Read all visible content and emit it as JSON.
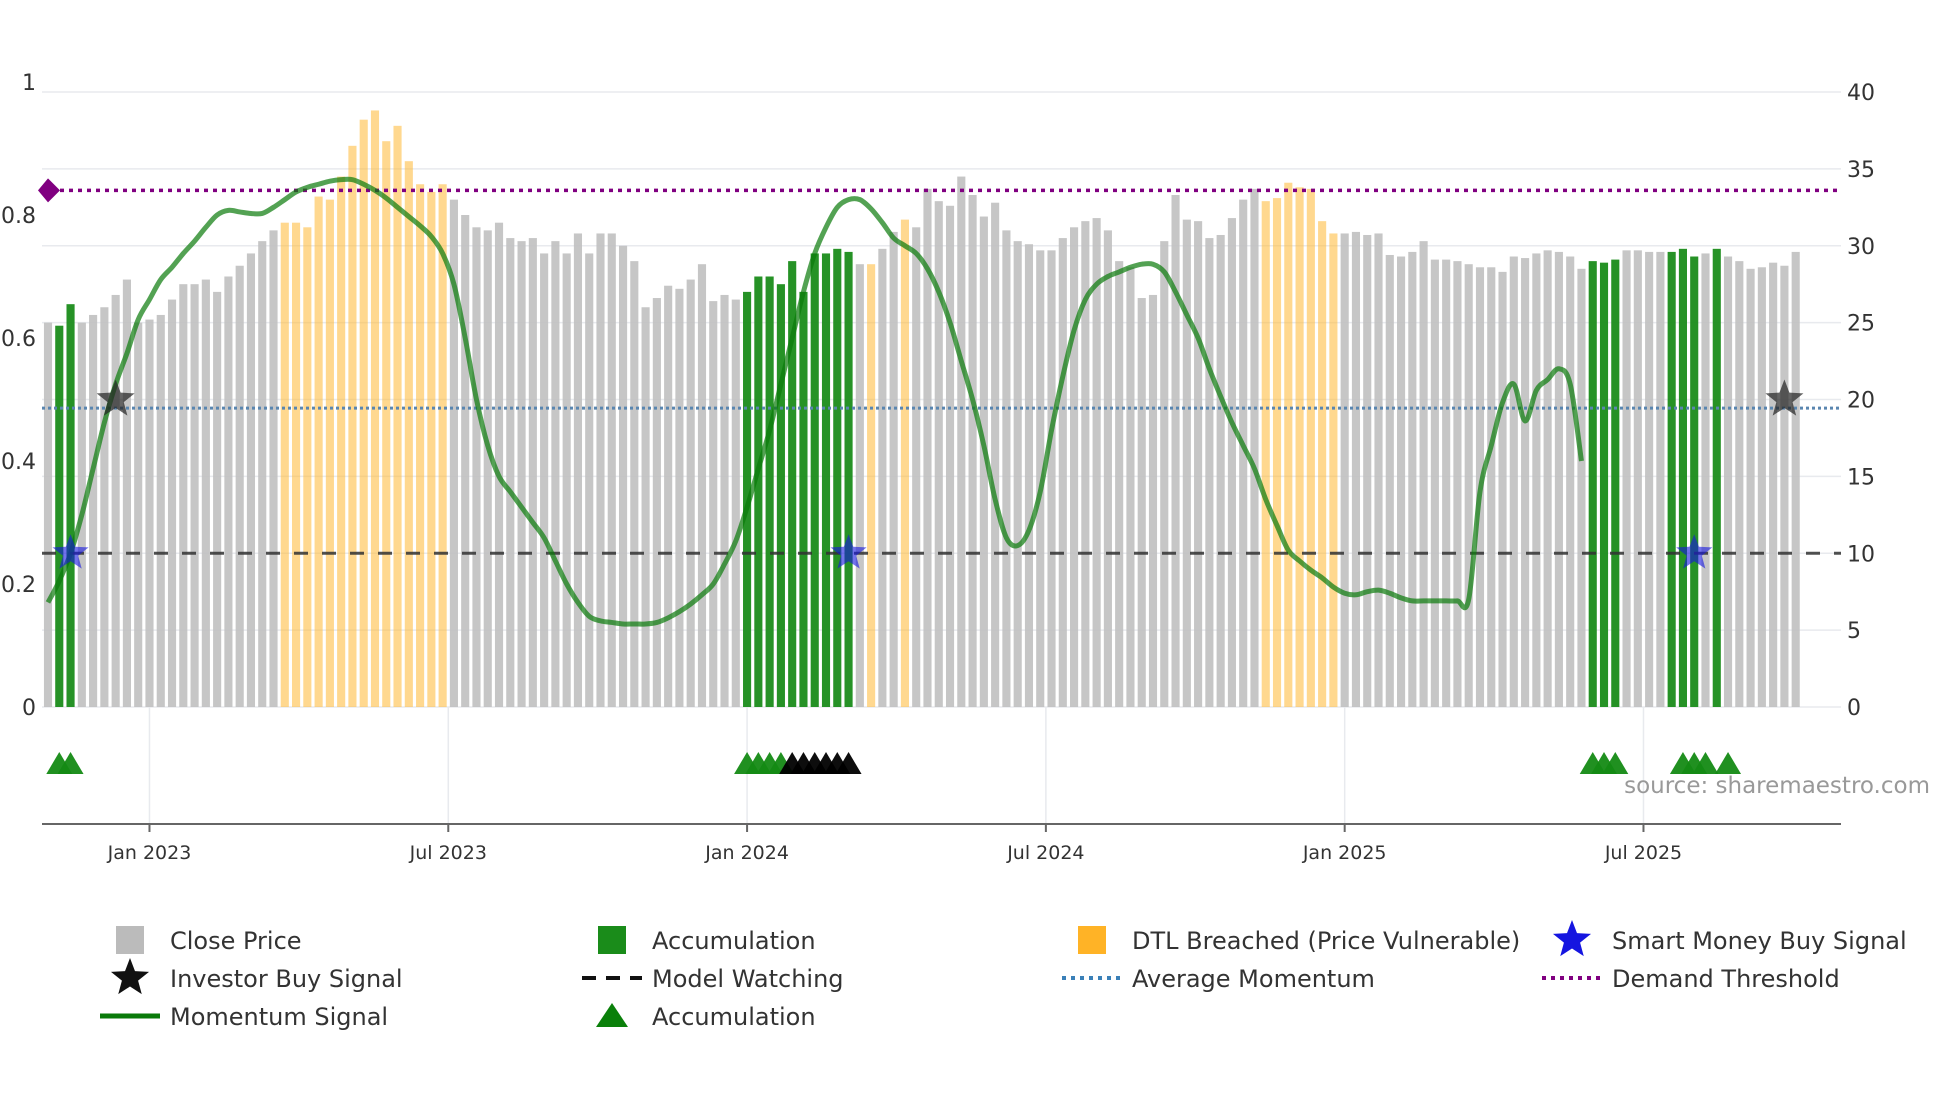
{
  "chart_data": {
    "type": "bar",
    "source_text": "source: sharemaestro.com",
    "colors": {
      "close_price": "#c0c0c0",
      "accumulation": "#1a8c1a",
      "dtl_breached": "#ffb833",
      "momentum": "#0a7a0a",
      "model_watching": "#333333",
      "average_momentum": "#5a86b0",
      "demand_threshold": "#800080",
      "smart_money": "#1515e0",
      "investor": "#222222",
      "accumulation_marker": "#148a14",
      "investor_marker_bottom": "#000000"
    },
    "left_axis": {
      "min": 0,
      "max": 1,
      "ticks": [
        0,
        0.2,
        0.4,
        0.6,
        0.8,
        1
      ],
      "tick_labels": [
        "0",
        "0.2",
        "0.4",
        "0.6",
        "0.8",
        "1"
      ]
    },
    "right_axis": {
      "min": 0,
      "max": 40,
      "ticks": [
        0,
        5,
        10,
        15,
        20,
        25,
        30,
        35,
        40
      ],
      "tick_labels": [
        "0",
        "5",
        "10",
        "15",
        "20",
        "25",
        "30",
        "35",
        "40"
      ]
    },
    "x_axis": {
      "start_week": 0,
      "end_week": 159,
      "ticks": [
        9,
        35.5,
        62,
        88.5,
        115,
        141.5
      ],
      "tick_labels": [
        "Jan 2023",
        "Jul 2023",
        "Jan 2024",
        "Jul 2024",
        "Jan 2025",
        "Jul 2025"
      ]
    },
    "close_price": {
      "values": [
        25,
        24.8,
        26.2,
        25,
        25.5,
        26,
        26.8,
        27.8,
        25,
        25.2,
        25.5,
        26.5,
        27.5,
        27.5,
        27.8,
        27,
        28,
        28.7,
        29.5,
        30.3,
        31,
        31.5,
        31.5,
        31.2,
        33.2,
        33,
        34.5,
        36.5,
        38.2,
        38.8,
        36.8,
        37.8,
        35.5,
        34,
        33.5,
        34,
        33,
        32,
        31.2,
        31,
        31.5,
        30.5,
        30.3,
        30.5,
        29.5,
        30.3,
        29.5,
        30.8,
        29.5,
        30.8,
        30.8,
        30,
        29,
        26,
        26.6,
        27.4,
        27.2,
        27.8,
        28.8,
        26.4,
        26.8,
        26.5,
        27,
        28,
        28,
        27.5,
        29,
        27,
        29.5,
        29.5,
        29.8,
        29.6,
        28.8,
        28.8,
        29.8,
        30.9,
        31.7,
        31.2,
        33.7,
        32.9,
        32.6,
        34.5,
        33.3,
        31.9,
        32.8,
        31,
        30.3,
        30.1,
        29.7,
        29.7,
        30.5,
        31.2,
        31.6,
        31.8,
        31,
        29,
        28.6,
        26.6,
        26.8,
        30.3,
        33.3,
        31.7,
        31.6,
        30.5,
        30.7,
        31.8,
        33,
        33.7,
        32.9,
        33.1,
        34.1,
        33.8,
        33.7,
        31.6,
        30.8,
        30.8,
        30.9,
        30.7,
        30.8,
        29.4,
        29.3,
        29.6,
        30.3,
        29.1,
        29.1,
        29,
        28.8,
        28.6,
        28.6,
        28.3,
        29.3,
        29.2,
        29.5,
        29.7,
        29.6,
        29.3,
        28.5,
        29,
        28.9,
        29.1,
        29.7,
        29.7,
        29.6,
        29.6,
        29.6,
        29.8,
        29.3,
        29.5,
        29.8,
        29.3,
        29,
        28.5,
        28.6,
        28.9,
        28.7,
        29.6
      ],
      "accumulation_weeks": [
        1,
        2,
        62,
        63,
        64,
        65,
        66,
        67,
        68,
        69,
        70,
        71,
        137,
        138,
        139,
        144,
        145,
        146,
        148
      ],
      "dtl_breached_weeks": [
        21,
        22,
        23,
        24,
        25,
        26,
        27,
        28,
        29,
        30,
        31,
        32,
        33,
        34,
        35,
        73,
        76,
        108,
        109,
        110,
        111,
        112,
        113,
        114
      ]
    },
    "series": [
      {
        "name": "Momentum Signal",
        "axis": "right",
        "values": [
          6.8,
          8.2,
          10,
          12.5,
          15.5,
          18.5,
          21,
          23,
          25.2,
          26.5,
          27.8,
          28.6,
          29.5,
          30.3,
          31.2,
          32,
          32.3,
          32.2,
          32.1,
          32.1,
          32.5,
          33,
          33.5,
          33.8,
          34,
          34.2,
          34.3,
          34.3,
          34,
          33.6,
          33.1,
          32.5,
          31.9,
          31.3,
          30.6,
          29.5,
          27.5,
          24,
          20,
          17,
          15,
          14,
          13,
          12,
          11,
          9.5,
          8,
          6.8,
          5.9,
          5.6,
          5.5,
          5.4,
          5.4,
          5.4,
          5.5,
          5.8,
          6.2,
          6.7,
          7.3,
          8,
          9.3,
          10.8,
          13,
          15.5,
          18,
          21,
          24,
          27,
          29.5,
          31.2,
          32.5,
          33,
          33,
          32.4,
          31.5,
          30.5,
          30,
          29.5,
          28.5,
          27,
          25,
          22.5,
          20,
          17,
          13.5,
          11,
          10.5,
          11.5,
          14,
          18,
          21.5,
          24.5,
          26.5,
          27.5,
          28,
          28.3,
          28.6,
          28.8,
          28.8,
          28.3,
          27,
          25.5,
          24,
          22,
          20.2,
          18.5,
          17,
          15.5,
          13.5,
          11.8,
          10.2,
          9.5,
          8.9,
          8.4,
          7.8,
          7.4,
          7.3,
          7.5,
          7.6,
          7.4,
          7.1,
          6.9,
          6.9,
          6.9,
          6.9,
          6.9,
          7,
          14,
          17,
          19.8,
          21,
          18.6,
          20.6,
          21.3,
          22,
          21,
          16
        ],
        "start_week": 3
      }
    ],
    "reference_lines": [
      {
        "name": "Model Watching",
        "axis": "left",
        "value": 0.25
      },
      {
        "name": "Average Momentum",
        "axis": "left",
        "value": 0.486
      },
      {
        "name": "Demand Threshold",
        "axis": "left",
        "value": 0.84
      }
    ],
    "smart_money_buy_signal": {
      "weeks": [
        2,
        71,
        146
      ],
      "axis": "left",
      "value": 0.25
    },
    "investor_buy_signal": [
      {
        "week": 6,
        "axis": "left",
        "value": 0.5
      },
      {
        "week": 154,
        "axis": "left",
        "value": 0.5
      }
    ],
    "accumulation_markers_green": [
      1,
      2,
      62,
      63,
      64,
      65,
      137,
      138,
      139,
      145,
      146,
      147,
      149
    ],
    "accumulation_markers_black": [
      66,
      67,
      68,
      69,
      70,
      71
    ],
    "legend": [
      {
        "label": "Close Price",
        "symbol": "square",
        "color": "#bbbbbb"
      },
      {
        "label": "Accumulation",
        "symbol": "square",
        "color": "#1a8c1a"
      },
      {
        "label": "DTL Breached (Price Vulnerable)",
        "symbol": "square",
        "color": "#ffb326"
      },
      {
        "label": "Smart Money Buy Signal",
        "symbol": "star",
        "color": "#1515e0"
      },
      {
        "label": "Investor Buy Signal",
        "symbol": "star",
        "color": "#111111"
      },
      {
        "label": "Model Watching",
        "symbol": "dash",
        "color": "#111111"
      },
      {
        "label": "Average Momentum",
        "symbol": "dot",
        "color": "#3a80b8"
      },
      {
        "label": "Demand Threshold",
        "symbol": "dot",
        "color": "#800080"
      },
      {
        "label": "Momentum Signal",
        "symbol": "line",
        "color": "#0a7a0a"
      },
      {
        "label": "Accumulation",
        "symbol": "triangle",
        "color": "#0a800a"
      }
    ]
  }
}
